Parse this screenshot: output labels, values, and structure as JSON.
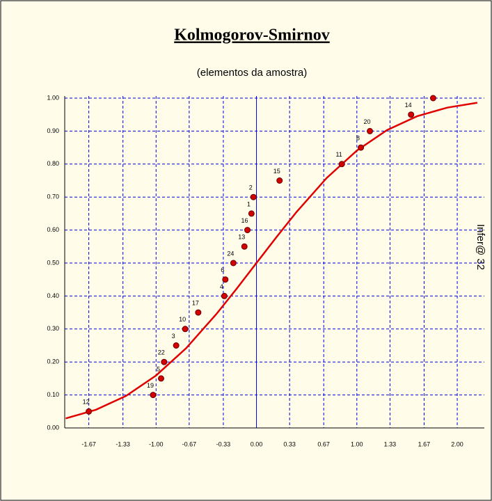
{
  "chart_data": {
    "type": "scatter",
    "title": "Kolmogorov-Smirnov",
    "subtitle": "(elementos da amostra)",
    "side_label": "Infer@ 32",
    "xlim": [
      -1.91,
      2.27
    ],
    "ylim": [
      0,
      1
    ],
    "xticks": [
      -1.67,
      -1.33,
      {
        "value": -1,
        "label": "-1.00"
      },
      -0.67,
      -0.33,
      {
        "value": 0,
        "label": "0.00"
      },
      0.33,
      0.67,
      {
        "value": 1,
        "label": "1.00"
      },
      1.33,
      1.67,
      {
        "value": 2,
        "label": "2.00"
      }
    ],
    "yticks": [
      {
        "value": 0,
        "label": "0.00"
      },
      {
        "value": 0.1,
        "label": "0.10"
      },
      {
        "value": 0.2,
        "label": "0.20"
      },
      {
        "value": 0.3,
        "label": "0.30"
      },
      {
        "value": 0.4,
        "label": "0.40"
      },
      {
        "value": 0.5,
        "label": "0.50"
      },
      {
        "value": 0.6,
        "label": "0.60"
      },
      {
        "value": 0.7,
        "label": "0.70"
      },
      {
        "value": 0.8,
        "label": "0.80"
      },
      {
        "value": 0.9,
        "label": "0.90"
      },
      {
        "value": 1,
        "label": "1.00"
      }
    ],
    "grid": true,
    "grid_color": "#0000e0",
    "points": {
      "color": "#d40000",
      "labels": [
        "12",
        "19",
        "5",
        "22",
        "3",
        "10",
        "17",
        "4",
        "6",
        "24",
        "13",
        "16",
        "1",
        "2",
        "15",
        "11",
        "8",
        "20",
        "14",
        null
      ],
      "x": [
        -1.67,
        -1.03,
        -0.95,
        -0.92,
        -0.8,
        -0.71,
        -0.58,
        -0.32,
        -0.31,
        -0.23,
        -0.12,
        -0.09,
        -0.05,
        -0.03,
        0.23,
        0.85,
        1.04,
        1.13,
        1.54,
        1.76
      ],
      "values": [
        0.05,
        0.1,
        0.15,
        0.2,
        0.25,
        0.3,
        0.35,
        0.4,
        0.45,
        0.5,
        0.55,
        0.6,
        0.65,
        0.7,
        0.75,
        0.8,
        0.85,
        0.9,
        0.95,
        1.0
      ]
    },
    "curve": {
      "color": "#e00000",
      "x": [
        -1.9,
        -1.6,
        -1.3,
        -1.0,
        -0.7,
        -0.4,
        -0.2,
        0,
        0.2,
        0.4,
        0.7,
        1.0,
        1.3,
        1.6,
        1.9,
        2.2
      ],
      "values": [
        0.029,
        0.055,
        0.097,
        0.159,
        0.242,
        0.345,
        0.421,
        0.5,
        0.579,
        0.655,
        0.758,
        0.841,
        0.903,
        0.945,
        0.971,
        0.986
      ]
    }
  }
}
